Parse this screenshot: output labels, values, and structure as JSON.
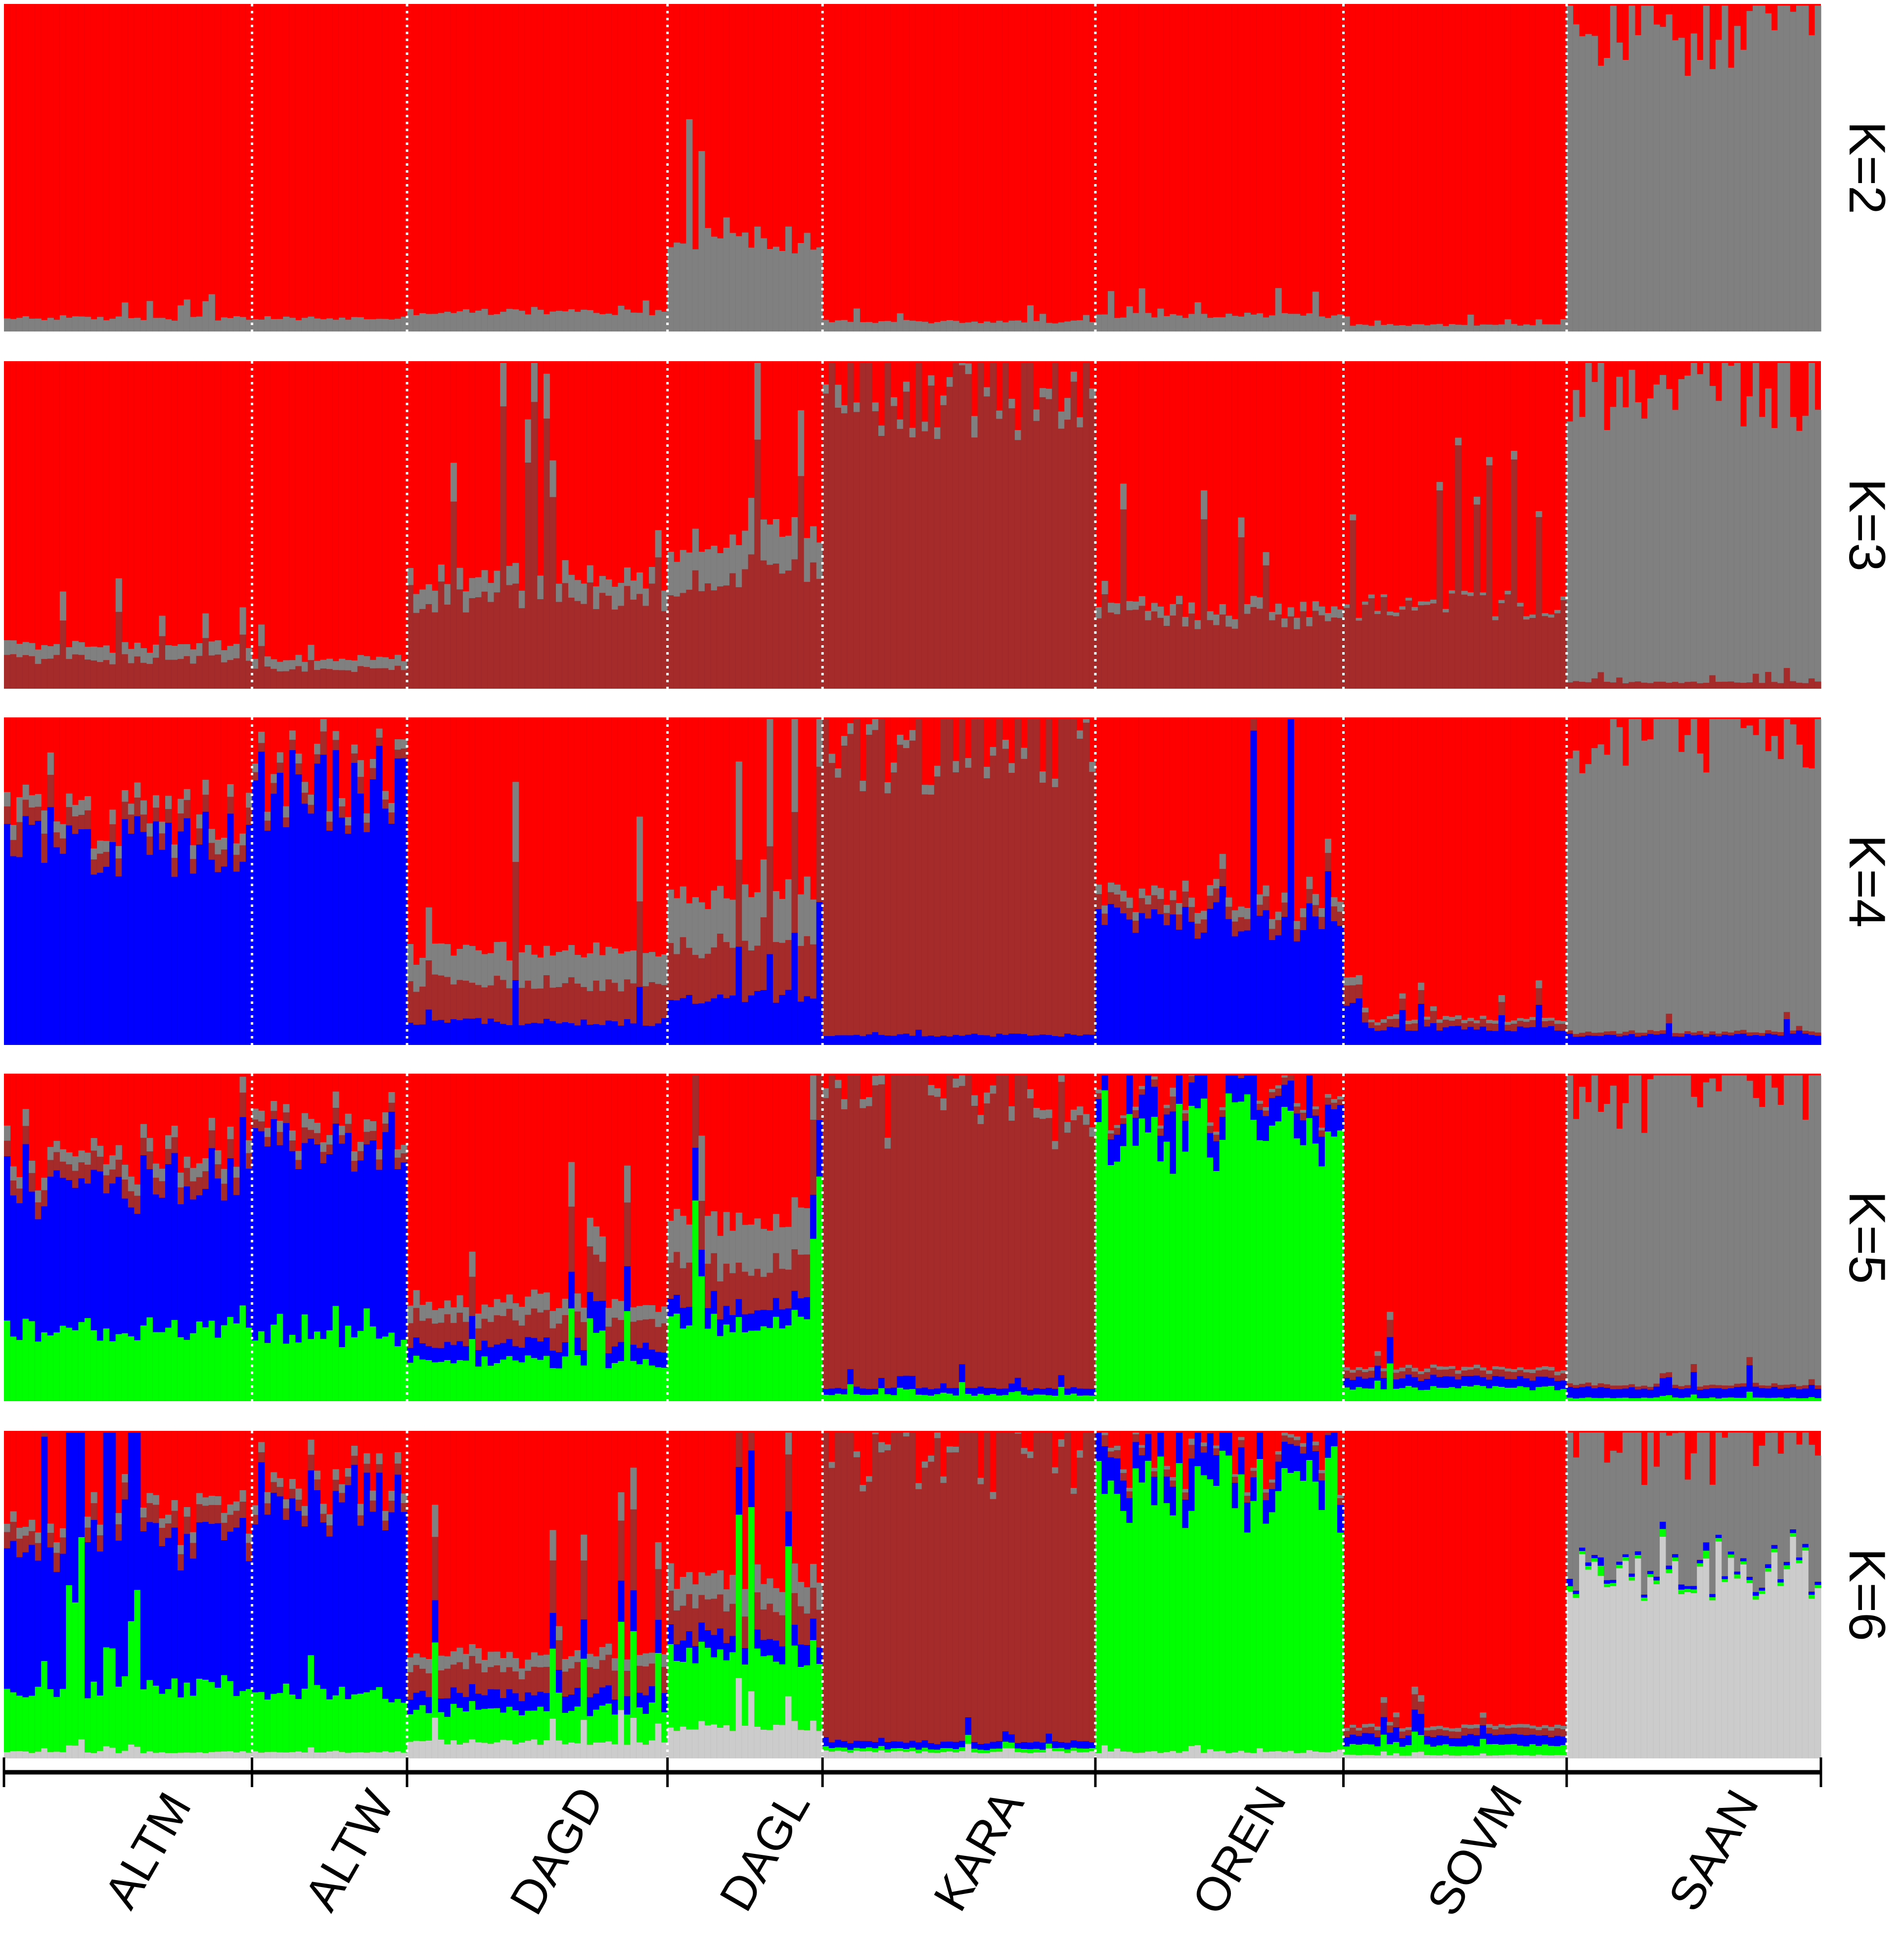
{
  "chart_data": {
    "type": "bar",
    "subtype": "stacked-admixture",
    "populations": [
      {
        "name": "ALTM",
        "n": 40
      },
      {
        "name": "ALTW",
        "n": 25
      },
      {
        "name": "DAGD",
        "n": 42
      },
      {
        "name": "DAGL",
        "n": 25
      },
      {
        "name": "KARA",
        "n": 44
      },
      {
        "name": "OREN",
        "n": 40
      },
      {
        "name": "SOVM",
        "n": 36
      },
      {
        "name": "SAAN",
        "n": 41
      }
    ],
    "cluster_colors": {
      "red": "#ff0000",
      "grey": "#808080",
      "brown": "#a52a2a",
      "blue": "#0000ff",
      "green": "#00ff00",
      "lightgrey": "#cccccc"
    },
    "panels": [
      {
        "label": "K=2",
        "stack_order": [
          "grey",
          "red"
        ],
        "profiles": {
          "ALTM": {
            "grey": 0.04
          },
          "ALTW": {
            "grey": 0.04
          },
          "DAGD": {
            "grey": 0.06
          },
          "DAGL": {
            "grey": 0.28
          },
          "KARA": {
            "grey": 0.03
          },
          "OREN": {
            "grey": 0.05
          },
          "SOVM": {
            "grey": 0.02
          },
          "SAAN": {
            "grey": 0.93
          }
        }
      },
      {
        "label": "K=3",
        "stack_order": [
          "brown",
          "grey",
          "red"
        ],
        "profiles": {
          "ALTM": {
            "brown": 0.09,
            "grey": 0.04
          },
          "ALTW": {
            "brown": 0.06,
            "grey": 0.03
          },
          "DAGD": {
            "brown": 0.28,
            "grey": 0.06
          },
          "DAGL": {
            "brown": 0.34,
            "grey": 0.12
          },
          "KARA": {
            "brown": 0.92,
            "grey": 0.03
          },
          "OREN": {
            "brown": 0.22,
            "grey": 0.03
          },
          "SOVM": {
            "brown": 0.25,
            "grey": 0.01
          },
          "SAAN": {
            "brown": 0.02,
            "grey": 0.93
          }
        }
      },
      {
        "label": "K=4",
        "stack_order": [
          "blue",
          "brown",
          "grey",
          "red"
        ],
        "profiles": {
          "ALTM": {
            "blue": 0.62,
            "brown": 0.05,
            "grey": 0.04
          },
          "ALTW": {
            "blue": 0.78,
            "brown": 0.03,
            "grey": 0.03
          },
          "DAGD": {
            "blue": 0.07,
            "brown": 0.12,
            "grey": 0.1
          },
          "DAGL": {
            "blue": 0.15,
            "brown": 0.16,
            "grey": 0.16
          },
          "KARA": {
            "blue": 0.03,
            "brown": 0.89,
            "grey": 0.03
          },
          "OREN": {
            "blue": 0.38,
            "brown": 0.04,
            "grey": 0.03
          },
          "SOVM": {
            "blue": 0.05,
            "brown": 0.02,
            "grey": 0.01
          },
          "SAAN": {
            "blue": 0.03,
            "brown": 0.01,
            "grey": 0.92
          }
        }
      },
      {
        "label": "K=5",
        "stack_order": [
          "green",
          "blue",
          "brown",
          "grey",
          "red"
        ],
        "profiles": {
          "ALTM": {
            "green": 0.22,
            "blue": 0.45,
            "brown": 0.05,
            "grey": 0.04
          },
          "ALTW": {
            "green": 0.2,
            "blue": 0.6,
            "brown": 0.03,
            "grey": 0.03
          },
          "DAGD": {
            "green": 0.12,
            "blue": 0.05,
            "brown": 0.08,
            "grey": 0.05
          },
          "DAGL": {
            "green": 0.24,
            "blue": 0.06,
            "brown": 0.12,
            "grey": 0.14
          },
          "KARA": {
            "green": 0.02,
            "blue": 0.02,
            "brown": 0.88,
            "grey": 0.03
          },
          "OREN": {
            "green": 0.82,
            "blue": 0.08,
            "brown": 0.02,
            "grey": 0.01
          },
          "SOVM": {
            "green": 0.04,
            "blue": 0.03,
            "brown": 0.02,
            "grey": 0.01
          },
          "SAAN": {
            "green": 0.01,
            "blue": 0.03,
            "brown": 0.01,
            "grey": 0.91
          }
        }
      },
      {
        "label": "K=6",
        "stack_order": [
          "lightgrey",
          "green",
          "blue",
          "brown",
          "grey",
          "red"
        ],
        "profiles": {
          "ALTM": {
            "lightgrey": 0.02,
            "green": 0.2,
            "blue": 0.46,
            "brown": 0.05,
            "grey": 0.03
          },
          "ALTW": {
            "lightgrey": 0.02,
            "green": 0.18,
            "blue": 0.6,
            "brown": 0.03,
            "grey": 0.03
          },
          "DAGD": {
            "lightgrey": 0.05,
            "green": 0.1,
            "blue": 0.05,
            "brown": 0.08,
            "grey": 0.04
          },
          "DAGL": {
            "lightgrey": 0.1,
            "green": 0.22,
            "blue": 0.06,
            "brown": 0.1,
            "grey": 0.08
          },
          "KARA": {
            "lightgrey": 0.02,
            "green": 0.01,
            "blue": 0.02,
            "brown": 0.89,
            "grey": 0.02
          },
          "OREN": {
            "lightgrey": 0.02,
            "green": 0.8,
            "blue": 0.08,
            "brown": 0.02,
            "grey": 0.01
          },
          "SOVM": {
            "lightgrey": 0.01,
            "green": 0.03,
            "blue": 0.03,
            "brown": 0.02,
            "grey": 0.01
          },
          "SAAN": {
            "lightgrey": 0.58,
            "green": 0.01,
            "blue": 0.01,
            "brown": 0.0,
            "grey": 0.39
          }
        }
      }
    ]
  }
}
